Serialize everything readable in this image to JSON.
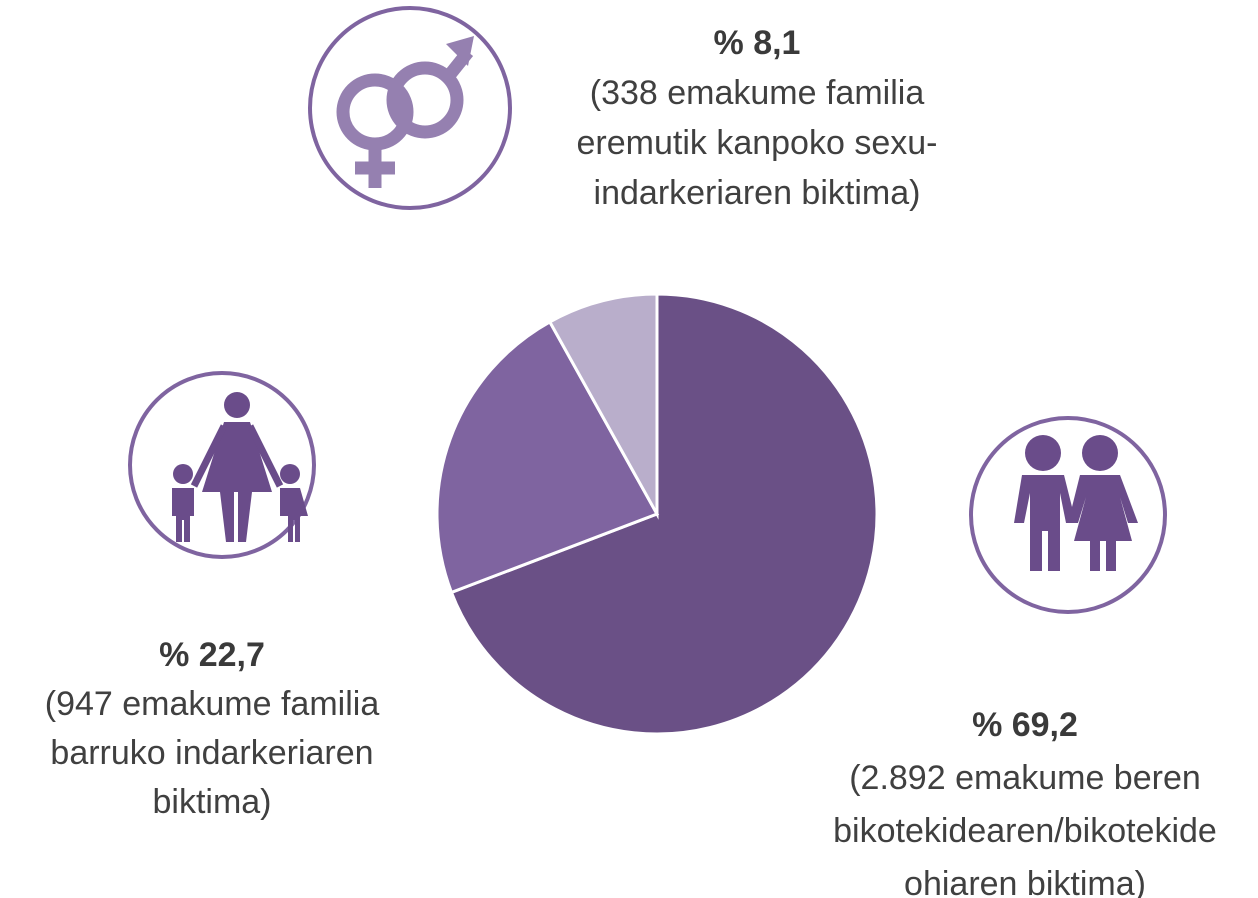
{
  "chart_data": {
    "type": "pie",
    "values": [
      69.2,
      22.7,
      8.1
    ],
    "value_labels": [
      "% 69,2",
      "% 22,7",
      "% 8,1"
    ],
    "labels": [
      [
        "(2.892 emakume beren",
        "bikotekidearen/bikotekide",
        "ohiaren biktima)"
      ],
      [
        "(947 emakume familia",
        "barruko indarkeriaren",
        "biktima)"
      ],
      [
        "(338 emakume familia",
        "eremutik kanpoko sexu-",
        "indarkeriaren biktima)"
      ]
    ],
    "colors": [
      "#6a5086",
      "#7f64a0",
      "#b9aecb"
    ]
  }
}
